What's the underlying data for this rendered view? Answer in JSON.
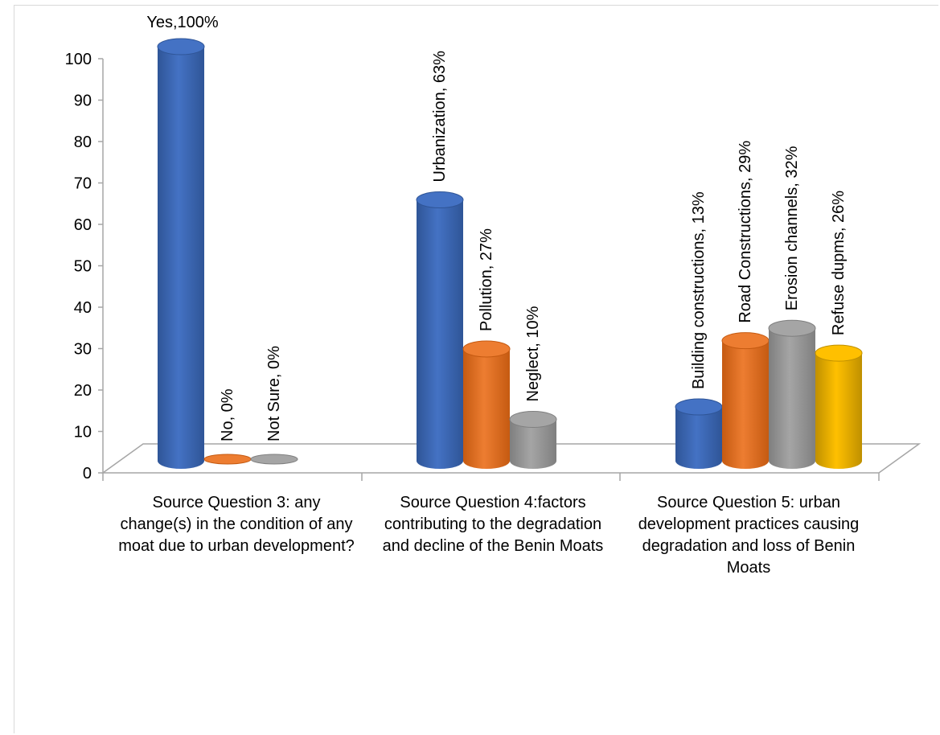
{
  "chart_data": {
    "type": "bar",
    "title": "",
    "xlabel": "",
    "ylabel": "",
    "ylim": [
      0,
      100
    ],
    "y_ticks": [
      "0",
      "10",
      "20",
      "30",
      "40",
      "50",
      "60",
      "70",
      "80",
      "90",
      "100"
    ],
    "grid": false,
    "groups": [
      {
        "category": "Source Question 3: any change(s) in the condition of any moat due to urban development?",
        "bars": [
          {
            "label": "Yes,100%",
            "value": 100,
            "color": "blue"
          },
          {
            "label": "No, 0%",
            "value": 0,
            "color": "orange"
          },
          {
            "label": "Not Sure, 0%",
            "value": 0,
            "color": "gray"
          }
        ]
      },
      {
        "category": "Source Question 4:factors contributing to the degradation and decline of the Benin Moats",
        "bars": [
          {
            "label": "Urbanization, 63%",
            "value": 63,
            "color": "blue"
          },
          {
            "label": "Pollution, 27%",
            "value": 27,
            "color": "orange"
          },
          {
            "label": "Neglect, 10%",
            "value": 10,
            "color": "gray"
          }
        ]
      },
      {
        "category": "Source Question 5: urban development practices causing degradation and loss of Benin Moats",
        "bars": [
          {
            "label": "Building constructions, 13%",
            "value": 13,
            "color": "blue"
          },
          {
            "label": "Road Constructions, 29%",
            "value": 29,
            "color": "orange"
          },
          {
            "label": "Erosion channels, 32%",
            "value": 32,
            "color": "gray"
          },
          {
            "label": "Refuse dupms, 26%",
            "value": 26,
            "color": "gold"
          }
        ]
      }
    ]
  },
  "colors": {
    "blue": [
      "#2f5597",
      "#4472c4",
      "#6a93dd"
    ],
    "orange": [
      "#c55a11",
      "#ed7d31",
      "#f4a16a"
    ],
    "gray": [
      "#7f7f7f",
      "#a5a5a5",
      "#c9c9c9"
    ],
    "gold": [
      "#bf9000",
      "#ffc000",
      "#ffd766"
    ],
    "axis": "#a6a6a6"
  }
}
